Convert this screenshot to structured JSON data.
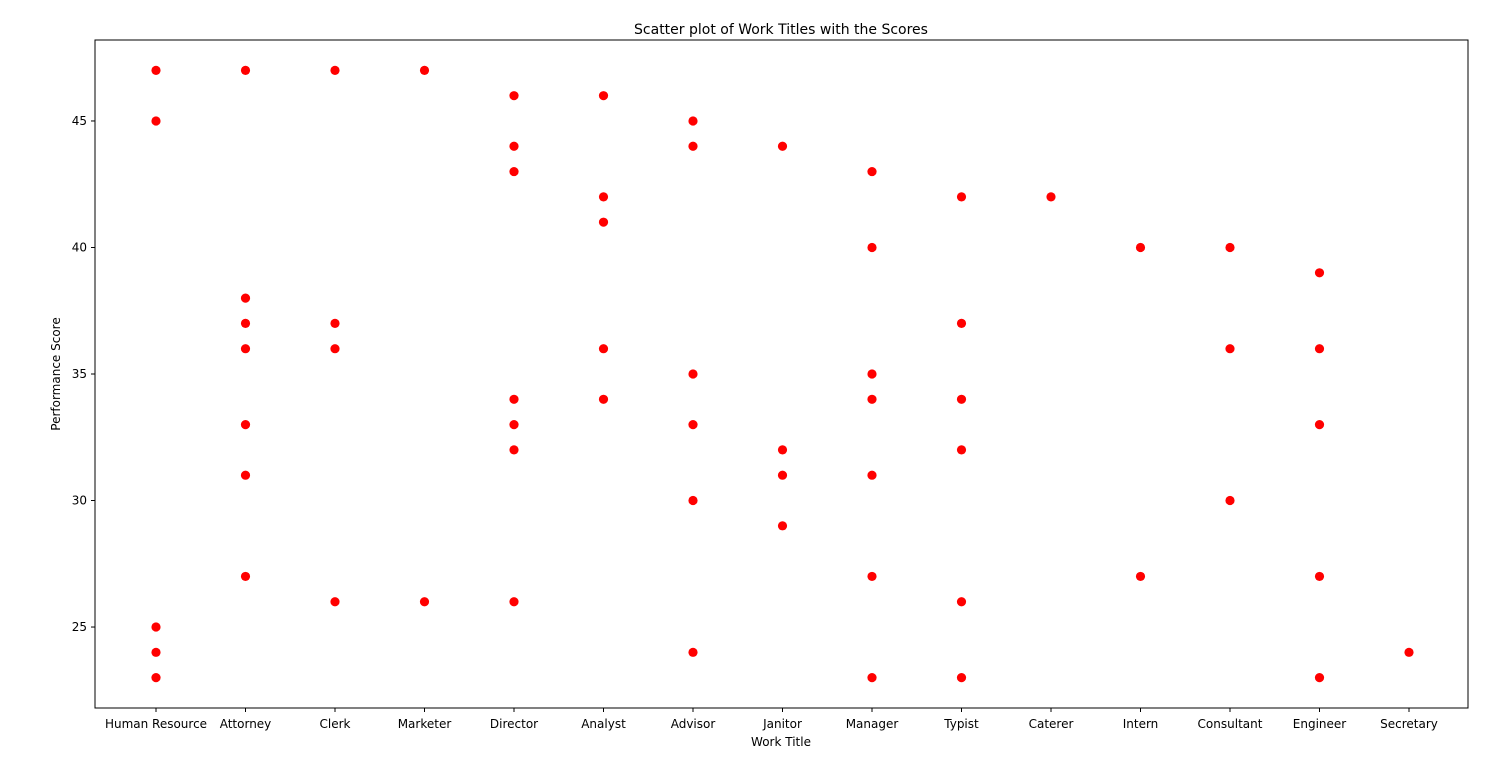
{
  "chart_data": {
    "type": "scatter",
    "title": "Scatter plot of Work Titles with the Scores",
    "xlabel": "Work Title",
    "ylabel": "Performance Score",
    "categories": [
      "Human Resource",
      "Attorney",
      "Clerk",
      "Marketer",
      "Director",
      "Analyst",
      "Advisor",
      "Janitor",
      "Manager",
      "Typist",
      "Caterer",
      "Intern",
      "Consultant",
      "Engineer",
      "Secretary"
    ],
    "yticks": [
      25,
      30,
      35,
      40,
      45
    ],
    "ylim": [
      21.8,
      48.2
    ],
    "grid": false,
    "marker_color": "#ff0000",
    "points": [
      {
        "x": "Human Resource",
        "y": 47
      },
      {
        "x": "Human Resource",
        "y": 45
      },
      {
        "x": "Human Resource",
        "y": 25
      },
      {
        "x": "Human Resource",
        "y": 24
      },
      {
        "x": "Human Resource",
        "y": 23
      },
      {
        "x": "Attorney",
        "y": 47
      },
      {
        "x": "Attorney",
        "y": 38
      },
      {
        "x": "Attorney",
        "y": 37
      },
      {
        "x": "Attorney",
        "y": 36
      },
      {
        "x": "Attorney",
        "y": 33
      },
      {
        "x": "Attorney",
        "y": 31
      },
      {
        "x": "Attorney",
        "y": 27
      },
      {
        "x": "Clerk",
        "y": 47
      },
      {
        "x": "Clerk",
        "y": 37
      },
      {
        "x": "Clerk",
        "y": 36
      },
      {
        "x": "Clerk",
        "y": 26
      },
      {
        "x": "Marketer",
        "y": 47
      },
      {
        "x": "Marketer",
        "y": 26
      },
      {
        "x": "Director",
        "y": 46
      },
      {
        "x": "Director",
        "y": 44
      },
      {
        "x": "Director",
        "y": 43
      },
      {
        "x": "Director",
        "y": 34
      },
      {
        "x": "Director",
        "y": 33
      },
      {
        "x": "Director",
        "y": 32
      },
      {
        "x": "Director",
        "y": 26
      },
      {
        "x": "Analyst",
        "y": 46
      },
      {
        "x": "Analyst",
        "y": 42
      },
      {
        "x": "Analyst",
        "y": 41
      },
      {
        "x": "Analyst",
        "y": 36
      },
      {
        "x": "Analyst",
        "y": 34
      },
      {
        "x": "Advisor",
        "y": 45
      },
      {
        "x": "Advisor",
        "y": 44
      },
      {
        "x": "Advisor",
        "y": 35
      },
      {
        "x": "Advisor",
        "y": 33
      },
      {
        "x": "Advisor",
        "y": 30
      },
      {
        "x": "Advisor",
        "y": 24
      },
      {
        "x": "Janitor",
        "y": 44
      },
      {
        "x": "Janitor",
        "y": 32
      },
      {
        "x": "Janitor",
        "y": 31
      },
      {
        "x": "Janitor",
        "y": 29
      },
      {
        "x": "Manager",
        "y": 43
      },
      {
        "x": "Manager",
        "y": 40
      },
      {
        "x": "Manager",
        "y": 35
      },
      {
        "x": "Manager",
        "y": 34
      },
      {
        "x": "Manager",
        "y": 31
      },
      {
        "x": "Manager",
        "y": 27
      },
      {
        "x": "Manager",
        "y": 23
      },
      {
        "x": "Typist",
        "y": 42
      },
      {
        "x": "Typist",
        "y": 37
      },
      {
        "x": "Typist",
        "y": 34
      },
      {
        "x": "Typist",
        "y": 32
      },
      {
        "x": "Typist",
        "y": 26
      },
      {
        "x": "Typist",
        "y": 23
      },
      {
        "x": "Caterer",
        "y": 42
      },
      {
        "x": "Intern",
        "y": 40
      },
      {
        "x": "Intern",
        "y": 27
      },
      {
        "x": "Consultant",
        "y": 40
      },
      {
        "x": "Consultant",
        "y": 36
      },
      {
        "x": "Consultant",
        "y": 30
      },
      {
        "x": "Engineer",
        "y": 39
      },
      {
        "x": "Engineer",
        "y": 36
      },
      {
        "x": "Engineer",
        "y": 33
      },
      {
        "x": "Engineer",
        "y": 27
      },
      {
        "x": "Engineer",
        "y": 23
      },
      {
        "x": "Secretary",
        "y": 24
      }
    ]
  }
}
